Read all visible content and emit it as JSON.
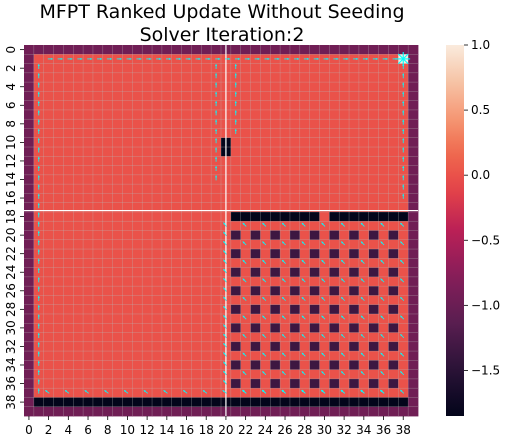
{
  "chart_data": {
    "type": "heatmap",
    "title_line1": "MFPT Ranked Update Without Seeding",
    "title_line2": "Solver Iteration:2",
    "grid_rows": 40,
    "grid_cols": 40,
    "x_tick_labels": [
      "0",
      "2",
      "4",
      "6",
      "8",
      "10",
      "12",
      "14",
      "16",
      "18",
      "20",
      "22",
      "24",
      "26",
      "28",
      "30",
      "32",
      "34",
      "36",
      "38"
    ],
    "y_tick_labels": [
      "0",
      "2",
      "4",
      "6",
      "8",
      "10",
      "12",
      "14",
      "16",
      "18",
      "20",
      "22",
      "24",
      "26",
      "28",
      "30",
      "32",
      "34",
      "36",
      "38"
    ],
    "colorbar": {
      "vmin": -1.85,
      "vmax": 1.0,
      "tick_values": [
        1.0,
        0.5,
        0.0,
        -0.5,
        -1.0,
        -1.5
      ],
      "tick_labels": [
        "1.0",
        "0.5",
        "0.0",
        "−0.5",
        "−1.0",
        "−1.5"
      ]
    },
    "cell_values": {
      "obstacle": -1.85,
      "free_space": 0.0,
      "checker_low": -1.35,
      "boundary": -0.95,
      "goal": 1.0
    },
    "obstacle_cells": {
      "col_20_rows": [
        10,
        11
      ],
      "row_18_cols": [
        21,
        22,
        23,
        24,
        25,
        26,
        27,
        28,
        29,
        31,
        32,
        33,
        34,
        35,
        36,
        37,
        38
      ],
      "row_38_cols": [
        1,
        2,
        3,
        4,
        5,
        6,
        7,
        8,
        9,
        10,
        11,
        12,
        13,
        14,
        15,
        16,
        17,
        18,
        19,
        20,
        21,
        22,
        23,
        24,
        25,
        26,
        27,
        28,
        29,
        30,
        31,
        32,
        33,
        34,
        35,
        36,
        37,
        38
      ]
    },
    "goal_cell": [
      1,
      38
    ],
    "separator_col": 20,
    "separator_row": 17,
    "checker_region": {
      "rows": [
        19,
        37
      ],
      "cols": [
        21,
        38
      ]
    },
    "arrow_color": "#00ffff",
    "colormap": "rocket"
  }
}
